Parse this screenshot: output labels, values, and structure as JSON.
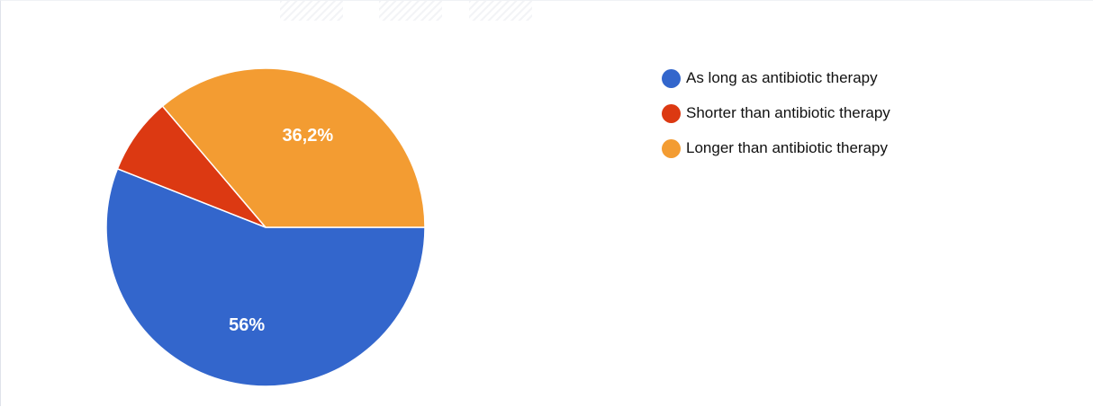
{
  "chart_data": {
    "type": "pie",
    "title": "",
    "categories": [
      "As long as antibiotic therapy",
      "Shorter than antibiotic therapy",
      "Longer than antibiotic therapy"
    ],
    "values": [
      56,
      7.8,
      36.2
    ],
    "data_labels": [
      "56%",
      "",
      "36,2%"
    ],
    "colors": [
      "#3366cc",
      "#dc3912",
      "#f39c32"
    ],
    "legend_position": "right"
  }
}
